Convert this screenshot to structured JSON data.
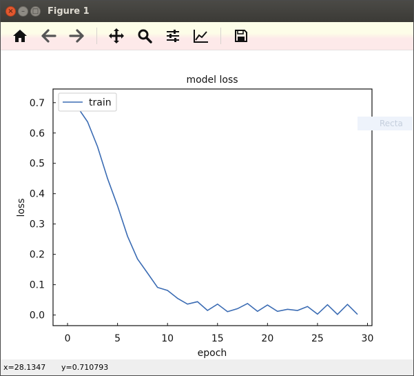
{
  "window": {
    "title": "Figure 1",
    "buttons": {
      "close": "×",
      "minimize": "–",
      "maximize": "□"
    }
  },
  "toolbar": {
    "items": [
      {
        "icon": "home-icon"
      },
      {
        "icon": "back-arrow-icon"
      },
      {
        "icon": "forward-arrow-icon"
      },
      {
        "icon": "pan-icon"
      },
      {
        "icon": "zoom-icon"
      },
      {
        "icon": "configure-subplots-icon"
      },
      {
        "icon": "edit-axis-icon"
      },
      {
        "icon": "save-icon"
      }
    ]
  },
  "ghost_widget": {
    "label": "Recta"
  },
  "status": {
    "x": "x=28.1347",
    "y": "y=0.710793"
  },
  "chart_data": {
    "type": "line",
    "title": "model loss",
    "xlabel": "epoch",
    "ylabel": "loss",
    "xlim": [
      -1.45,
      30.45
    ],
    "ylim": [
      -0.035,
      0.745
    ],
    "xticks": [
      0,
      5,
      10,
      15,
      20,
      25,
      30
    ],
    "yticks": [
      0.0,
      0.1,
      0.2,
      0.3,
      0.4,
      0.5,
      0.6,
      0.7
    ],
    "legend": {
      "position": "top-left"
    },
    "grid": false,
    "series": [
      {
        "name": "train",
        "color": "#3a6bb3",
        "x": [
          0,
          1,
          2,
          3,
          4,
          5,
          6,
          7,
          8,
          9,
          10,
          11,
          12,
          13,
          14,
          15,
          16,
          17,
          18,
          19,
          20,
          21,
          22,
          23,
          24,
          25,
          26,
          27,
          28,
          29
        ],
        "values": [
          0.715,
          0.685,
          0.637,
          0.555,
          0.45,
          0.36,
          0.26,
          0.185,
          0.138,
          0.091,
          0.081,
          0.055,
          0.036,
          0.044,
          0.015,
          0.036,
          0.011,
          0.021,
          0.038,
          0.012,
          0.033,
          0.012,
          0.019,
          0.015,
          0.028,
          0.003,
          0.034,
          0.002,
          0.035,
          0.002
        ]
      }
    ]
  }
}
